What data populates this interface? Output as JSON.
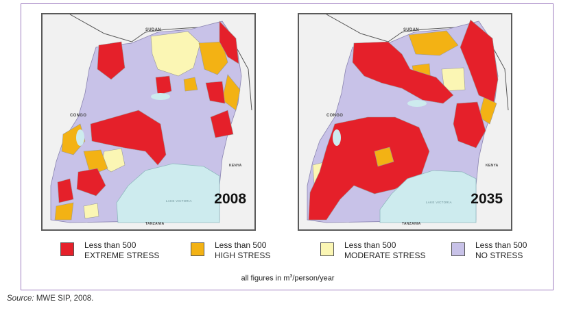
{
  "maps": [
    {
      "year": "2008",
      "labels": {
        "sudan": "SUDAN",
        "congo": "CONGO",
        "kenya": "KENYA",
        "tanzania": "TANZANIA",
        "lake": "LAKE VICTORIA"
      }
    },
    {
      "year": "2035",
      "labels": {
        "sudan": "SUDAN",
        "congo": "CONGO",
        "kenya": "KENYA",
        "tanzania": "TANZANIA",
        "lake": "LAKE VICTORIA"
      }
    }
  ],
  "legend": [
    {
      "line1": "Less than 500",
      "line2": "EXTREME STRESS",
      "color": "#e5202a"
    },
    {
      "line1": "Less than 500",
      "line2": "HIGH STRESS",
      "color": "#f3b214"
    },
    {
      "line1": "Less than 500",
      "line2": "MODERATE STRESS",
      "color": "#fbf6b4"
    },
    {
      "line1": "Less than 500",
      "line2": "NO STRESS",
      "color": "#c8c2e8"
    }
  ],
  "units_prefix": "all figures in m",
  "units_sup": "3",
  "units_suffix": "/person/year",
  "source_label": "Source:",
  "source_text": " MWE SIP, 2008.",
  "colors": {
    "extreme": "#e5202a",
    "high": "#f3b214",
    "moderate": "#fbf6b4",
    "none": "#c8c2e8",
    "lake": "#cdebee",
    "frame": "#9d7bbf"
  }
}
